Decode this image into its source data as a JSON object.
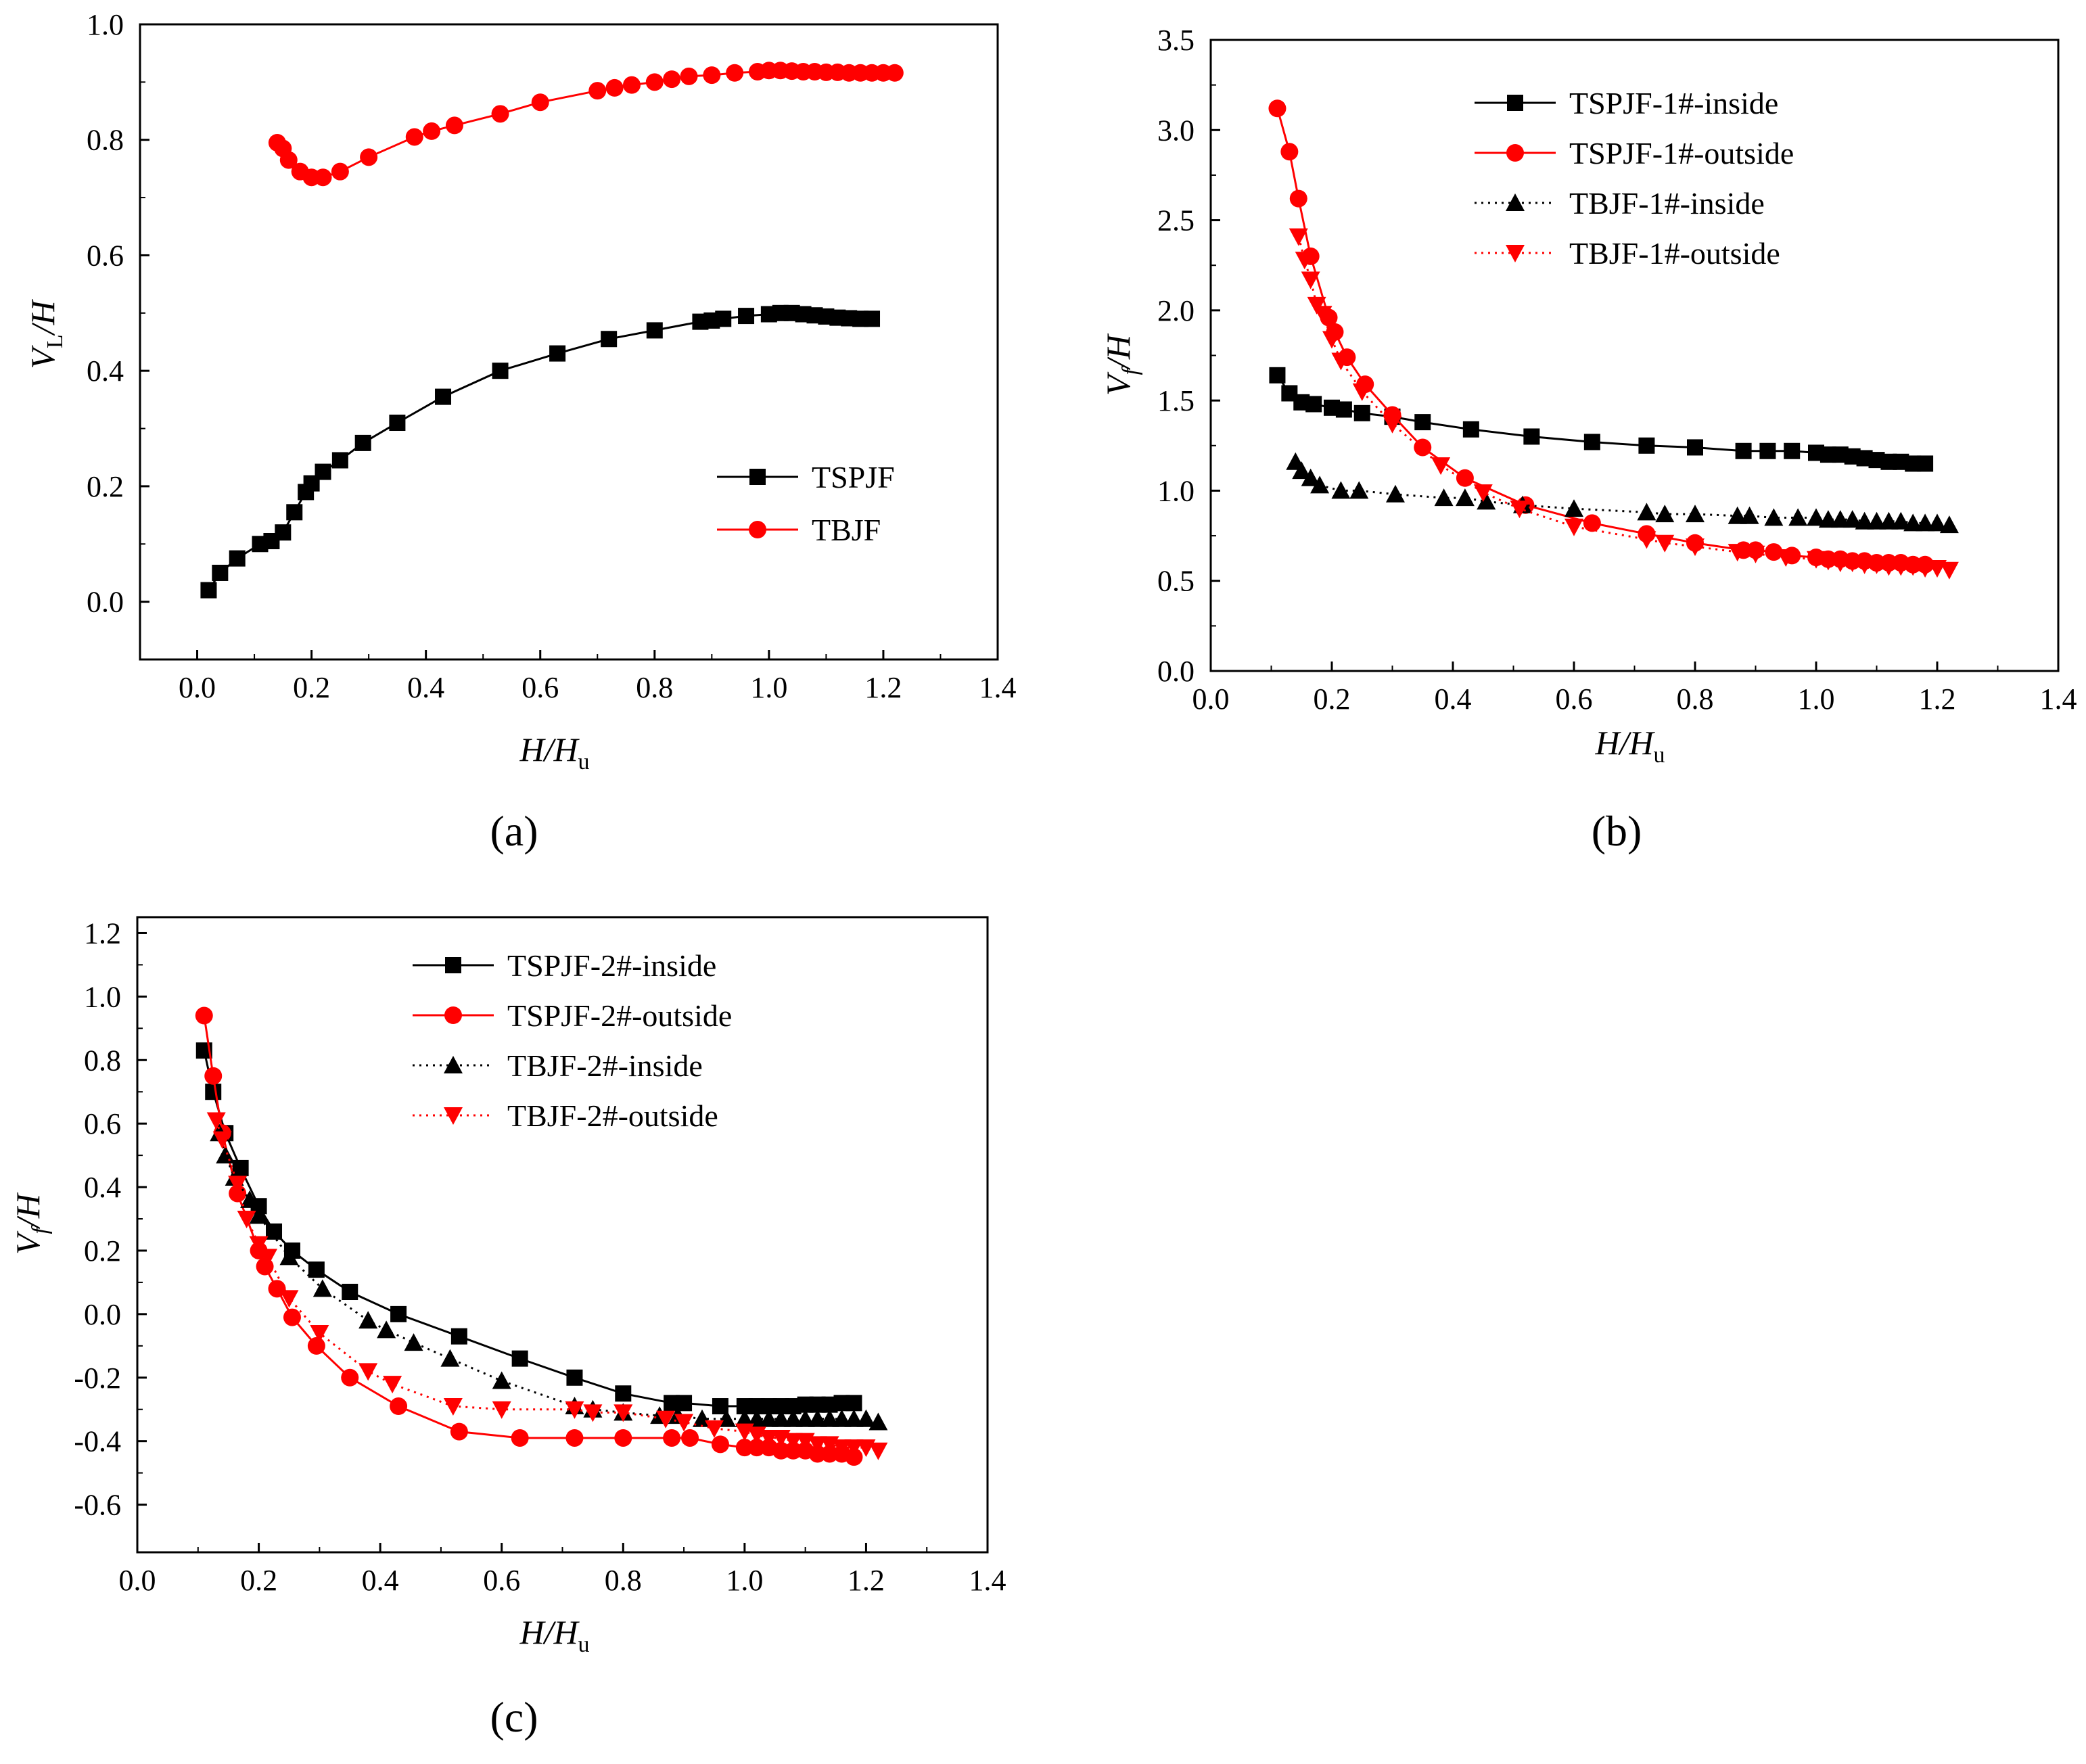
{
  "colors": {
    "black": "#000000",
    "red": "#ff0000"
  },
  "chart_data": [
    {
      "id": "a",
      "type": "line",
      "panel_label": "(a)",
      "xlabel": {
        "main": "H/H",
        "sub": "u"
      },
      "ylabel": {
        "main": "V",
        "sub": "L",
        "tail": "/H"
      },
      "xlim": [
        -0.1,
        1.4
      ],
      "ylim": [
        -0.1,
        1.0
      ],
      "xticks": [
        0.0,
        0.2,
        0.4,
        0.6,
        0.8,
        1.0,
        1.2,
        1.4
      ],
      "xtick_labels": [
        "0.0",
        "0.2",
        "0.4",
        "0.6",
        "0.8",
        "1.0",
        "1.2",
        "1.4"
      ],
      "yticks": [
        0.0,
        0.2,
        0.4,
        0.6,
        0.8,
        1.0
      ],
      "ytick_labels": [
        "0.0",
        "0.2",
        "0.4",
        "0.6",
        "0.8",
        "1.0"
      ],
      "legend_position": "lower-right",
      "series": [
        {
          "name": "TSPJF",
          "color": "#000000",
          "marker": "square",
          "line": "solid",
          "x": [
            0.02,
            0.04,
            0.07,
            0.11,
            0.13,
            0.15,
            0.17,
            0.19,
            0.2,
            0.22,
            0.25,
            0.29,
            0.35,
            0.43,
            0.53,
            0.63,
            0.72,
            0.8,
            0.88,
            0.9,
            0.92,
            0.96,
            1.0,
            1.02,
            1.04,
            1.06,
            1.08,
            1.1,
            1.12,
            1.14,
            1.16,
            1.18
          ],
          "y": [
            0.02,
            0.05,
            0.075,
            0.1,
            0.105,
            0.12,
            0.155,
            0.19,
            0.205,
            0.225,
            0.245,
            0.275,
            0.31,
            0.355,
            0.4,
            0.43,
            0.455,
            0.47,
            0.485,
            0.487,
            0.49,
            0.495,
            0.498,
            0.5,
            0.5,
            0.498,
            0.496,
            0.494,
            0.492,
            0.491,
            0.49,
            0.49
          ]
        },
        {
          "name": "TBJF",
          "color": "#ff0000",
          "marker": "circle",
          "line": "solid",
          "x": [
            0.14,
            0.15,
            0.16,
            0.18,
            0.2,
            0.22,
            0.25,
            0.3,
            0.38,
            0.41,
            0.45,
            0.53,
            0.6,
            0.7,
            0.73,
            0.76,
            0.8,
            0.83,
            0.86,
            0.9,
            0.94,
            0.98,
            1.0,
            1.02,
            1.04,
            1.06,
            1.08,
            1.1,
            1.12,
            1.14,
            1.16,
            1.18,
            1.2,
            1.22
          ],
          "y": [
            0.795,
            0.785,
            0.765,
            0.745,
            0.735,
            0.735,
            0.745,
            0.77,
            0.805,
            0.815,
            0.825,
            0.845,
            0.865,
            0.885,
            0.89,
            0.895,
            0.9,
            0.905,
            0.91,
            0.912,
            0.916,
            0.918,
            0.92,
            0.92,
            0.919,
            0.918,
            0.918,
            0.917,
            0.917,
            0.916,
            0.916,
            0.916,
            0.916,
            0.916
          ]
        }
      ]
    },
    {
      "id": "b",
      "type": "line",
      "panel_label": "(b)",
      "xlabel": {
        "main": "H/H",
        "sub": "u"
      },
      "ylabel": {
        "main": "V",
        "sub": "f",
        "tail": "/H"
      },
      "xlim": [
        0.0,
        1.4
      ],
      "ylim": [
        0.0,
        3.5
      ],
      "xticks": [
        0.0,
        0.2,
        0.4,
        0.6,
        0.8,
        1.0,
        1.2,
        1.4
      ],
      "xtick_labels": [
        "0.0",
        "0.2",
        "0.4",
        "0.6",
        "0.8",
        "1.0",
        "1.2",
        "1.4"
      ],
      "yticks": [
        0.0,
        0.5,
        1.0,
        1.5,
        2.0,
        2.5,
        3.0,
        3.5
      ],
      "ytick_labels": [
        "0.0",
        "0.5",
        "1.0",
        "1.5",
        "2.0",
        "2.5",
        "3.0",
        "3.5"
      ],
      "legend_position": "top-center",
      "series": [
        {
          "name": "TSPJF-1#-inside",
          "color": "#000000",
          "marker": "square",
          "line": "solid",
          "x": [
            0.11,
            0.13,
            0.15,
            0.17,
            0.2,
            0.22,
            0.25,
            0.3,
            0.35,
            0.43,
            0.53,
            0.63,
            0.72,
            0.8,
            0.88,
            0.92,
            0.96,
            1.0,
            1.02,
            1.04,
            1.06,
            1.08,
            1.1,
            1.12,
            1.14,
            1.16,
            1.18
          ],
          "y": [
            1.64,
            1.54,
            1.49,
            1.48,
            1.46,
            1.45,
            1.43,
            1.41,
            1.38,
            1.34,
            1.3,
            1.27,
            1.25,
            1.24,
            1.22,
            1.22,
            1.22,
            1.21,
            1.2,
            1.2,
            1.19,
            1.18,
            1.17,
            1.16,
            1.16,
            1.15,
            1.15
          ]
        },
        {
          "name": "TSPJF-1#-outside",
          "color": "#ff0000",
          "marker": "circle",
          "line": "solid",
          "x": [
            0.11,
            0.13,
            0.145,
            0.165,
            0.195,
            0.205,
            0.225,
            0.255,
            0.3,
            0.35,
            0.42,
            0.52,
            0.63,
            0.72,
            0.8,
            0.88,
            0.9,
            0.93,
            0.96,
            1.0,
            1.02,
            1.04,
            1.06,
            1.08,
            1.1,
            1.12,
            1.14,
            1.16,
            1.18
          ],
          "y": [
            3.12,
            2.88,
            2.62,
            2.3,
            1.96,
            1.88,
            1.74,
            1.59,
            1.42,
            1.24,
            1.07,
            0.92,
            0.82,
            0.76,
            0.71,
            0.67,
            0.67,
            0.66,
            0.64,
            0.63,
            0.62,
            0.62,
            0.61,
            0.61,
            0.6,
            0.6,
            0.6,
            0.59,
            0.59
          ]
        },
        {
          "name": "TBJF-1#-inside",
          "color": "#000000",
          "marker": "triangle-up",
          "line": "dotted",
          "x": [
            0.14,
            0.15,
            0.165,
            0.18,
            0.215,
            0.245,
            0.305,
            0.385,
            0.42,
            0.455,
            0.515,
            0.6,
            0.72,
            0.75,
            0.8,
            0.87,
            0.89,
            0.93,
            0.97,
            1.0,
            1.02,
            1.04,
            1.06,
            1.08,
            1.1,
            1.12,
            1.14,
            1.16,
            1.18,
            1.2,
            1.22
          ],
          "y": [
            1.16,
            1.11,
            1.07,
            1.03,
            1.0,
            1.0,
            0.98,
            0.96,
            0.96,
            0.94,
            0.92,
            0.9,
            0.88,
            0.87,
            0.87,
            0.86,
            0.86,
            0.85,
            0.85,
            0.85,
            0.84,
            0.84,
            0.84,
            0.83,
            0.83,
            0.83,
            0.83,
            0.82,
            0.82,
            0.82,
            0.81
          ]
        },
        {
          "name": "TBJF-1#-outside",
          "color": "#ff0000",
          "marker": "triangle-down",
          "line": "dotted",
          "x": [
            0.145,
            0.155,
            0.165,
            0.175,
            0.185,
            0.2,
            0.215,
            0.25,
            0.3,
            0.38,
            0.45,
            0.51,
            0.6,
            0.72,
            0.75,
            0.8,
            0.87,
            0.9,
            0.95,
            1.0,
            1.02,
            1.04,
            1.06,
            1.08,
            1.1,
            1.12,
            1.14,
            1.16,
            1.18,
            1.2,
            1.22
          ],
          "y": [
            2.41,
            2.28,
            2.17,
            2.03,
            1.98,
            1.84,
            1.72,
            1.55,
            1.37,
            1.14,
            0.99,
            0.9,
            0.8,
            0.73,
            0.71,
            0.69,
            0.66,
            0.65,
            0.63,
            0.62,
            0.61,
            0.6,
            0.6,
            0.59,
            0.59,
            0.58,
            0.58,
            0.58,
            0.57,
            0.57,
            0.56
          ]
        }
      ]
    },
    {
      "id": "c",
      "type": "line",
      "panel_label": "(c)",
      "xlabel": {
        "main": "H/H",
        "sub": "u"
      },
      "ylabel": {
        "main": "V",
        "sub": "f",
        "tail": "/H"
      },
      "xlim": [
        0.0,
        1.4
      ],
      "ylim": [
        -0.75,
        1.25
      ],
      "xticks": [
        0.0,
        0.2,
        0.4,
        0.6,
        0.8,
        1.0,
        1.2,
        1.4
      ],
      "xtick_labels": [
        "0.0",
        "0.2",
        "0.4",
        "0.6",
        "0.8",
        "1.0",
        "1.2",
        "1.4"
      ],
      "yticks": [
        -0.6,
        -0.4,
        -0.2,
        0.0,
        0.2,
        0.4,
        0.6,
        0.8,
        1.0,
        1.2
      ],
      "ytick_labels": [
        "-0.6",
        "-0.4",
        "-0.2",
        "0.0",
        "0.2",
        "0.4",
        "0.6",
        "0.8",
        "1.0",
        "1.2"
      ],
      "legend_position": "top-center",
      "series": [
        {
          "name": "TSPJF-2#-inside",
          "color": "#000000",
          "marker": "square",
          "line": "solid",
          "x": [
            0.11,
            0.125,
            0.145,
            0.17,
            0.2,
            0.225,
            0.255,
            0.295,
            0.35,
            0.43,
            0.53,
            0.63,
            0.72,
            0.8,
            0.88,
            0.9,
            0.96,
            1.0,
            1.02,
            1.04,
            1.06,
            1.08,
            1.1,
            1.12,
            1.14,
            1.16,
            1.18
          ],
          "y": [
            0.83,
            0.7,
            0.57,
            0.46,
            0.34,
            0.26,
            0.2,
            0.14,
            0.07,
            0.0,
            -0.07,
            -0.14,
            -0.2,
            -0.25,
            -0.28,
            -0.28,
            -0.29,
            -0.29,
            -0.29,
            -0.29,
            -0.29,
            -0.29,
            -0.285,
            -0.285,
            -0.285,
            -0.28,
            -0.28
          ]
        },
        {
          "name": "TSPJF-2#-outside",
          "color": "#ff0000",
          "marker": "circle",
          "line": "solid",
          "x": [
            0.11,
            0.125,
            0.14,
            0.165,
            0.2,
            0.21,
            0.23,
            0.255,
            0.295,
            0.35,
            0.43,
            0.53,
            0.63,
            0.72,
            0.8,
            0.88,
            0.91,
            0.96,
            1.0,
            1.02,
            1.04,
            1.06,
            1.08,
            1.1,
            1.12,
            1.14,
            1.16,
            1.18
          ],
          "y": [
            0.94,
            0.75,
            0.57,
            0.38,
            0.2,
            0.15,
            0.08,
            -0.01,
            -0.1,
            -0.2,
            -0.29,
            -0.37,
            -0.39,
            -0.39,
            -0.39,
            -0.39,
            -0.39,
            -0.41,
            -0.42,
            -0.42,
            -0.42,
            -0.43,
            -0.43,
            -0.43,
            -0.44,
            -0.44,
            -0.44,
            -0.45
          ]
        },
        {
          "name": "TBJF-2#-inside",
          "color": "#000000",
          "marker": "triangle-up",
          "line": "dotted",
          "x": [
            0.135,
            0.145,
            0.16,
            0.185,
            0.2,
            0.25,
            0.305,
            0.38,
            0.41,
            0.455,
            0.515,
            0.6,
            0.72,
            0.75,
            0.8,
            0.86,
            0.89,
            0.93,
            0.97,
            1.0,
            1.02,
            1.04,
            1.06,
            1.08,
            1.1,
            1.12,
            1.14,
            1.16,
            1.18,
            1.2,
            1.22
          ],
          "y": [
            0.57,
            0.5,
            0.43,
            0.36,
            0.31,
            0.18,
            0.08,
            -0.02,
            -0.05,
            -0.09,
            -0.14,
            -0.21,
            -0.29,
            -0.3,
            -0.31,
            -0.32,
            -0.32,
            -0.33,
            -0.33,
            -0.33,
            -0.33,
            -0.33,
            -0.33,
            -0.33,
            -0.33,
            -0.33,
            -0.33,
            -0.33,
            -0.33,
            -0.33,
            -0.34
          ]
        },
        {
          "name": "TBJF-2#-outside",
          "color": "#ff0000",
          "marker": "triangle-down",
          "line": "dotted",
          "x": [
            0.13,
            0.14,
            0.165,
            0.18,
            0.2,
            0.215,
            0.25,
            0.3,
            0.38,
            0.42,
            0.52,
            0.6,
            0.72,
            0.75,
            0.8,
            0.87,
            0.9,
            0.95,
            1.0,
            1.02,
            1.04,
            1.06,
            1.08,
            1.1,
            1.12,
            1.14,
            1.16,
            1.18,
            1.2,
            1.22
          ],
          "y": [
            0.61,
            0.55,
            0.41,
            0.3,
            0.22,
            0.18,
            0.05,
            -0.06,
            -0.18,
            -0.22,
            -0.29,
            -0.3,
            -0.3,
            -0.31,
            -0.31,
            -0.33,
            -0.34,
            -0.36,
            -0.37,
            -0.38,
            -0.39,
            -0.39,
            -0.4,
            -0.4,
            -0.41,
            -0.41,
            -0.42,
            -0.42,
            -0.42,
            -0.43
          ]
        }
      ]
    }
  ]
}
